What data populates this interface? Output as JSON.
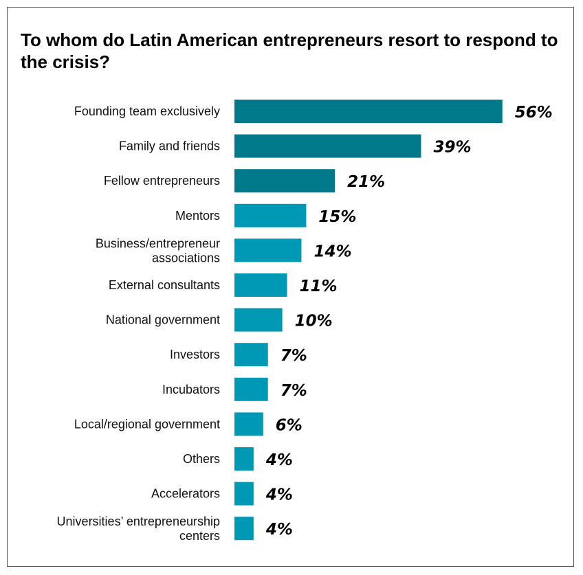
{
  "chart_data": {
    "type": "bar",
    "orientation": "horizontal",
    "title": "To whom do Latin American entrepreneurs resort to respond to the crisis?",
    "categories": [
      "Founding team exclusively",
      "Family and friends",
      "Fellow entrepreneurs",
      "Mentors",
      "Business/entrepreneur associations",
      "External consultants",
      "National government",
      "Investors",
      "Incubators",
      "Local/regional government",
      "Others",
      "Accelerators",
      "Universities’ entrepreneurship centers"
    ],
    "values": [
      56,
      39,
      21,
      15,
      14,
      11,
      10,
      7,
      7,
      6,
      4,
      4,
      4
    ],
    "value_labels": [
      "56%",
      "39%",
      "21%",
      "15%",
      "14%",
      "11%",
      "10%",
      "7%",
      "7%",
      "6%",
      "4%",
      "4%",
      "4%"
    ],
    "unit": "%",
    "grid": false,
    "legend": "none",
    "colors": {
      "highlight": "#007A8A",
      "default": "#0099B5"
    },
    "highlighted_count": 3
  }
}
